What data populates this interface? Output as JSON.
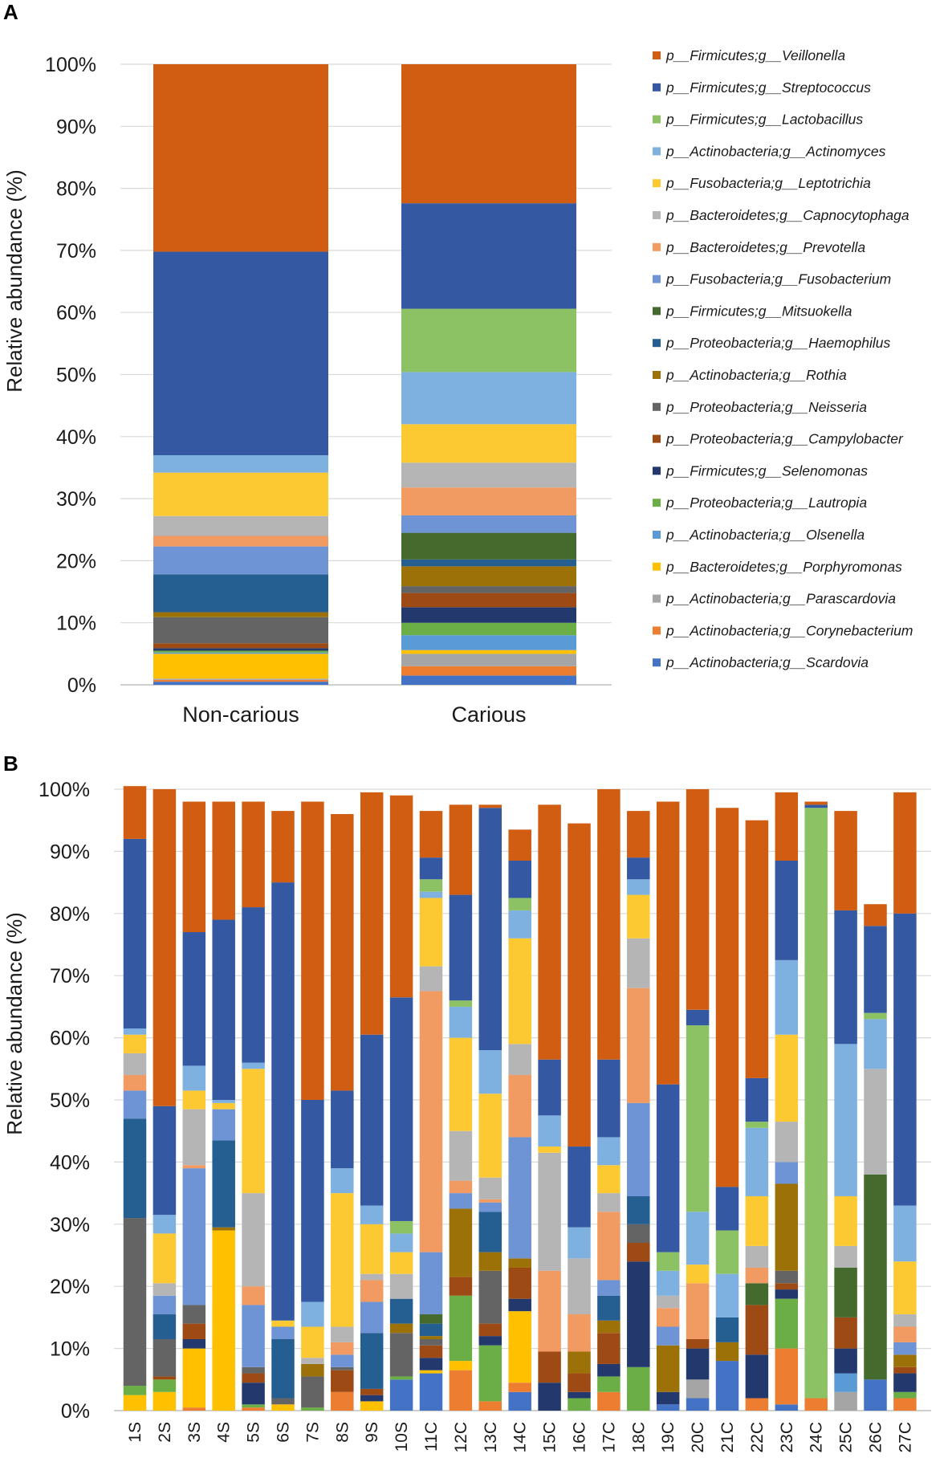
{
  "genera": [
    {
      "label": "p__Firmicutes;g__Veillonella",
      "color": "#D05D12"
    },
    {
      "label": "p__Firmicutes;g__Streptococcus",
      "color": "#3558A3"
    },
    {
      "label": "p__Firmicutes;g__Lactobacillus",
      "color": "#8DC264"
    },
    {
      "label": "p__Actinobacteria;g__Actinomyces",
      "color": "#7EB0E0"
    },
    {
      "label": "p__Fusobacteria;g__Leptotrichia",
      "color": "#FCC932"
    },
    {
      "label": "p__Bacteroidetes;g__Capnocytophaga",
      "color": "#B5B5B5"
    },
    {
      "label": "p__Bacteroidetes;g__Prevotella",
      "color": "#F19A61"
    },
    {
      "label": "p__Fusobacteria;g__Fusobacterium",
      "color": "#6E94D6"
    },
    {
      "label": "p__Firmicutes;g__Mitsuokella",
      "color": "#446A2D"
    },
    {
      "label": "p__Proteobacteria;g__Haemophilus",
      "color": "#255E91"
    },
    {
      "label": "p__Actinobacteria;g__Rothia",
      "color": "#9C7208"
    },
    {
      "label": "p__Proteobacteria;g__Neisseria",
      "color": "#646464"
    },
    {
      "label": "p__Proteobacteria;g__Campylobacter",
      "color": "#9E4A15"
    },
    {
      "label": "p__Firmicutes;g__Selenomonas",
      "color": "#23396E"
    },
    {
      "label": "p__Proteobacteria;g__Lautropia",
      "color": "#6BAE46"
    },
    {
      "label": "p__Actinobacteria;g__Olsenella",
      "color": "#5B9BD5"
    },
    {
      "label": "p__Bacteroidetes;g__Porphyromonas",
      "color": "#FFC000"
    },
    {
      "label": "p__Actinobacteria;g__Parascardovia",
      "color": "#A5A5A5"
    },
    {
      "label": "p__Actinobacteria;g__Corynebacterium",
      "color": "#ED7D31"
    },
    {
      "label": "p__Actinobacteria;g__Scardovia",
      "color": "#4472C4"
    }
  ],
  "chart_data": [
    {
      "panel": "A",
      "type": "bar",
      "stacked": true,
      "ylabel": "Relative abundance (%)",
      "xlabel": "",
      "ylim": [
        0,
        100
      ],
      "yticks": [
        "0%",
        "10%",
        "20%",
        "30%",
        "40%",
        "50%",
        "60%",
        "70%",
        "80%",
        "90%",
        "100%"
      ],
      "legend": "right",
      "categories": [
        "Non-carious",
        "Carious"
      ],
      "stack_order": "bottom-to-top: Scardovia, Corynebacterium, Parascardovia, Porphyromonas, Olsenella, Lautropia, Selenomonas, Campylobacter, Neisseria, Rothia, Haemophilus, Mitsuokella, Fusobacterium, Prevotella, Capnocytophaga, Leptotrichia, Actinomyces, Lactobacillus, Streptococcus, Veillonella",
      "series": [
        {
          "name": "p__Actinobacteria;g__Scardovia",
          "values": [
            0.5,
            1.5
          ]
        },
        {
          "name": "p__Actinobacteria;g__Corynebacterium",
          "values": [
            0.3,
            1.5
          ]
        },
        {
          "name": "p__Actinobacteria;g__Parascardovia",
          "values": [
            0.2,
            2.0
          ]
        },
        {
          "name": "p__Bacteroidetes;g__Porphyromonas",
          "values": [
            4.0,
            0.6
          ]
        },
        {
          "name": "p__Actinobacteria;g__Olsenella",
          "values": [
            0.2,
            2.4
          ]
        },
        {
          "name": "p__Proteobacteria;g__Lautropia",
          "values": [
            0.3,
            2.0
          ]
        },
        {
          "name": "p__Firmicutes;g__Selenomonas",
          "values": [
            0.4,
            2.5
          ]
        },
        {
          "name": "p__Proteobacteria;g__Campylobacter",
          "values": [
            0.8,
            2.3
          ]
        },
        {
          "name": "p__Proteobacteria;g__Neisseria",
          "values": [
            4.2,
            1.1
          ]
        },
        {
          "name": "p__Actinobacteria;g__Rothia",
          "values": [
            0.8,
            3.2
          ]
        },
        {
          "name": "p__Proteobacteria;g__Haemophilus",
          "values": [
            6.1,
            1.1
          ]
        },
        {
          "name": "p__Firmicutes;g__Mitsuokella",
          "values": [
            0.0,
            4.3
          ]
        },
        {
          "name": "p__Fusobacteria;g__Fusobacterium",
          "values": [
            4.5,
            2.8
          ]
        },
        {
          "name": "p__Bacteroidetes;g__Prevotella",
          "values": [
            1.7,
            4.5
          ]
        },
        {
          "name": "p__Bacteroidetes;g__Capnocytophaga",
          "values": [
            3.2,
            4.0
          ]
        },
        {
          "name": "p__Fusobacteria;g__Leptotrichia",
          "values": [
            7.0,
            6.2
          ]
        },
        {
          "name": "p__Actinobacteria;g__Actinomyces",
          "values": [
            2.8,
            8.4
          ]
        },
        {
          "name": "p__Firmicutes;g__Lactobacillus",
          "values": [
            0.0,
            10.2
          ]
        },
        {
          "name": "p__Firmicutes;g__Streptococcus",
          "values": [
            32.8,
            17.0
          ]
        },
        {
          "name": "p__Firmicutes;g__Veillonella",
          "values": [
            30.2,
            22.4
          ]
        }
      ]
    },
    {
      "panel": "B",
      "type": "bar",
      "stacked": true,
      "ylabel": "Relative abundance (%)",
      "xlabel": "",
      "ylim": [
        0,
        100
      ],
      "yticks": [
        "0%",
        "10%",
        "20%",
        "30%",
        "40%",
        "50%",
        "60%",
        "70%",
        "80%",
        "90%",
        "100%"
      ],
      "categories": [
        "1S",
        "2S",
        "3S",
        "4S",
        "5S",
        "6S",
        "7S",
        "8S",
        "9S",
        "10S",
        "11C",
        "12C",
        "13C",
        "14C",
        "15C",
        "16C",
        "17C",
        "18C",
        "19C",
        "20C",
        "21C",
        "22C",
        "23C",
        "24C",
        "25C",
        "26C",
        "27C"
      ],
      "stack_order": "same as panel A",
      "series": [
        {
          "name": "p__Actinobacteria;g__Scardovia",
          "values": [
            0,
            0,
            0,
            0,
            0,
            0,
            0,
            0,
            0,
            5,
            6,
            0,
            0,
            3,
            0,
            0,
            0,
            0,
            1,
            2,
            8,
            0,
            1,
            0,
            0,
            5,
            0
          ]
        },
        {
          "name": "p__Actinobacteria;g__Corynebacterium",
          "values": [
            0,
            0,
            0.5,
            0,
            0.5,
            0,
            0,
            3,
            0,
            0,
            0,
            6.5,
            1.5,
            1.5,
            0,
            0,
            3,
            0,
            0,
            0,
            0,
            2,
            9,
            2,
            0,
            0,
            2
          ]
        },
        {
          "name": "p__Actinobacteria;g__Parascardovia",
          "values": [
            0,
            0,
            0,
            0,
            0,
            0,
            0,
            0,
            0,
            0,
            0,
            0,
            0,
            0,
            0,
            0,
            0,
            0,
            0,
            3,
            0,
            0,
            0,
            0,
            3,
            0,
            0
          ]
        },
        {
          "name": "p__Bacteroidetes;g__Porphyromonas",
          "values": [
            2.5,
            3,
            9.5,
            29,
            0,
            1,
            0,
            0,
            1.5,
            0,
            0.5,
            1.5,
            0,
            11.5,
            0,
            0,
            0,
            0,
            0,
            0,
            0,
            0,
            0,
            0,
            0,
            0,
            0
          ]
        },
        {
          "name": "p__Actinobacteria;g__Olsenella",
          "values": [
            0,
            0,
            0,
            0,
            0,
            0,
            0,
            0,
            0,
            0,
            0,
            0,
            0,
            0,
            0,
            0,
            0,
            0,
            0,
            0,
            0,
            0,
            0,
            0,
            3,
            0,
            0
          ]
        },
        {
          "name": "p__Proteobacteria;g__Lautropia",
          "values": [
            1.5,
            2,
            0,
            0,
            0.5,
            0,
            0.5,
            0,
            0,
            0.5,
            0,
            10.5,
            9,
            0,
            0,
            2,
            2.5,
            7,
            0,
            0,
            0,
            0,
            8,
            0,
            0,
            0,
            1
          ]
        },
        {
          "name": "p__Firmicutes;g__Selenomonas",
          "values": [
            0,
            0,
            1.5,
            0,
            3.5,
            0,
            0,
            0,
            1,
            0,
            2,
            0,
            1.5,
            2,
            4.5,
            1,
            2,
            17,
            2,
            5,
            0,
            7,
            1.5,
            0,
            4,
            0,
            3
          ]
        },
        {
          "name": "p__Proteobacteria;g__Campylobacter",
          "values": [
            0,
            0.5,
            2.5,
            0,
            1.5,
            0,
            0,
            3.5,
            1,
            0,
            2,
            3,
            2,
            5,
            5,
            3,
            5,
            3,
            0,
            1.5,
            0,
            8,
            1,
            0,
            5,
            0,
            1
          ]
        },
        {
          "name": "p__Proteobacteria;g__Neisseria",
          "values": [
            27,
            6,
            3,
            0,
            1,
            1,
            5,
            0.5,
            0,
            7,
            1,
            0,
            8.5,
            0,
            0,
            0,
            0,
            3,
            0,
            0,
            0,
            0,
            2,
            0,
            0,
            0,
            0
          ]
        },
        {
          "name": "p__Actinobacteria;g__Rothia",
          "values": [
            0,
            0,
            0,
            0.5,
            0,
            0,
            2,
            0,
            0,
            1.5,
            0.5,
            11,
            3,
            1.5,
            0,
            3.5,
            2,
            0,
            7.5,
            0,
            3,
            0,
            14,
            0,
            0,
            0,
            2
          ]
        },
        {
          "name": "p__Proteobacteria;g__Haemophilus",
          "values": [
            16,
            4,
            0,
            14,
            0,
            9.5,
            0,
            0,
            9,
            4,
            2,
            0,
            6.5,
            0,
            0,
            0,
            4,
            4.5,
            0,
            0,
            4,
            0,
            0,
            0,
            0,
            0,
            0
          ]
        },
        {
          "name": "p__Firmicutes;g__Mitsuokella",
          "values": [
            0,
            0,
            0,
            0,
            0,
            0,
            0,
            0,
            0,
            0,
            1.5,
            0,
            0,
            0,
            0,
            0,
            0,
            0,
            0,
            0,
            0,
            3.5,
            0,
            0,
            8,
            33,
            0
          ]
        },
        {
          "name": "p__Fusobacteria;g__Fusobacterium",
          "values": [
            4.5,
            3,
            22,
            5,
            10,
            2,
            0,
            2,
            5,
            0,
            10,
            2.5,
            1.5,
            19.5,
            0,
            0,
            2.5,
            15,
            3,
            0,
            0,
            0,
            3.5,
            0,
            0,
            0,
            2
          ]
        },
        {
          "name": "p__Bacteroidetes;g__Prevotella",
          "values": [
            2.5,
            0,
            0.5,
            0,
            3,
            0,
            0,
            2,
            3.5,
            0,
            42,
            2,
            0.5,
            10,
            13,
            6,
            11,
            18.5,
            3,
            9,
            0,
            2.5,
            0,
            0,
            0,
            0,
            2.5
          ]
        },
        {
          "name": "p__Bacteroidetes;g__Capnocytophaga",
          "values": [
            3.5,
            2,
            9,
            0,
            15,
            0,
            1,
            2.5,
            1,
            4,
            4,
            8,
            3.5,
            5,
            19,
            9,
            3,
            8,
            2,
            0,
            0,
            3.5,
            6.5,
            0,
            3.5,
            17,
            2
          ]
        },
        {
          "name": "p__Fusobacteria;g__Leptotrichia",
          "values": [
            3,
            8,
            3,
            1,
            20,
            1,
            5,
            21.5,
            8,
            3.5,
            11,
            15,
            13.5,
            17,
            1,
            0,
            4.5,
            7,
            0,
            3,
            0,
            8,
            14,
            0,
            8,
            0,
            8.5
          ]
        },
        {
          "name": "p__Actinobacteria;g__Actinomyces",
          "values": [
            1,
            3,
            4,
            0.5,
            1,
            0,
            4,
            4,
            3,
            3,
            1,
            5,
            7,
            4.5,
            5,
            5,
            4.5,
            2.5,
            4,
            8.5,
            7,
            11,
            12,
            0,
            24.5,
            8,
            9
          ]
        },
        {
          "name": "p__Firmicutes;g__Lactobacillus",
          "values": [
            0,
            0,
            0,
            0,
            0,
            0,
            0,
            0,
            0,
            2,
            2,
            1,
            0,
            2,
            0,
            0,
            0,
            0,
            3,
            30,
            7,
            1,
            0,
            95,
            0,
            1,
            0
          ]
        },
        {
          "name": "p__Firmicutes;g__Streptococcus",
          "values": [
            30.5,
            17.5,
            21.5,
            29,
            25,
            70.5,
            32.5,
            12.5,
            27.5,
            36,
            3.5,
            17,
            39,
            6,
            9,
            13,
            12.5,
            3.5,
            27,
            2.5,
            7,
            7,
            16,
            0.5,
            21.5,
            14,
            47
          ]
        },
        {
          "name": "p__Firmicutes;g__Veillonella",
          "values": [
            8.5,
            51,
            21,
            19,
            17,
            11.5,
            48,
            44.5,
            39,
            32.5,
            7.5,
            14.5,
            0.5,
            5,
            41,
            52,
            43.5,
            7.5,
            45.5,
            35.5,
            61,
            41.5,
            11,
            0.5,
            16,
            3.5,
            19.5
          ]
        }
      ]
    }
  ]
}
